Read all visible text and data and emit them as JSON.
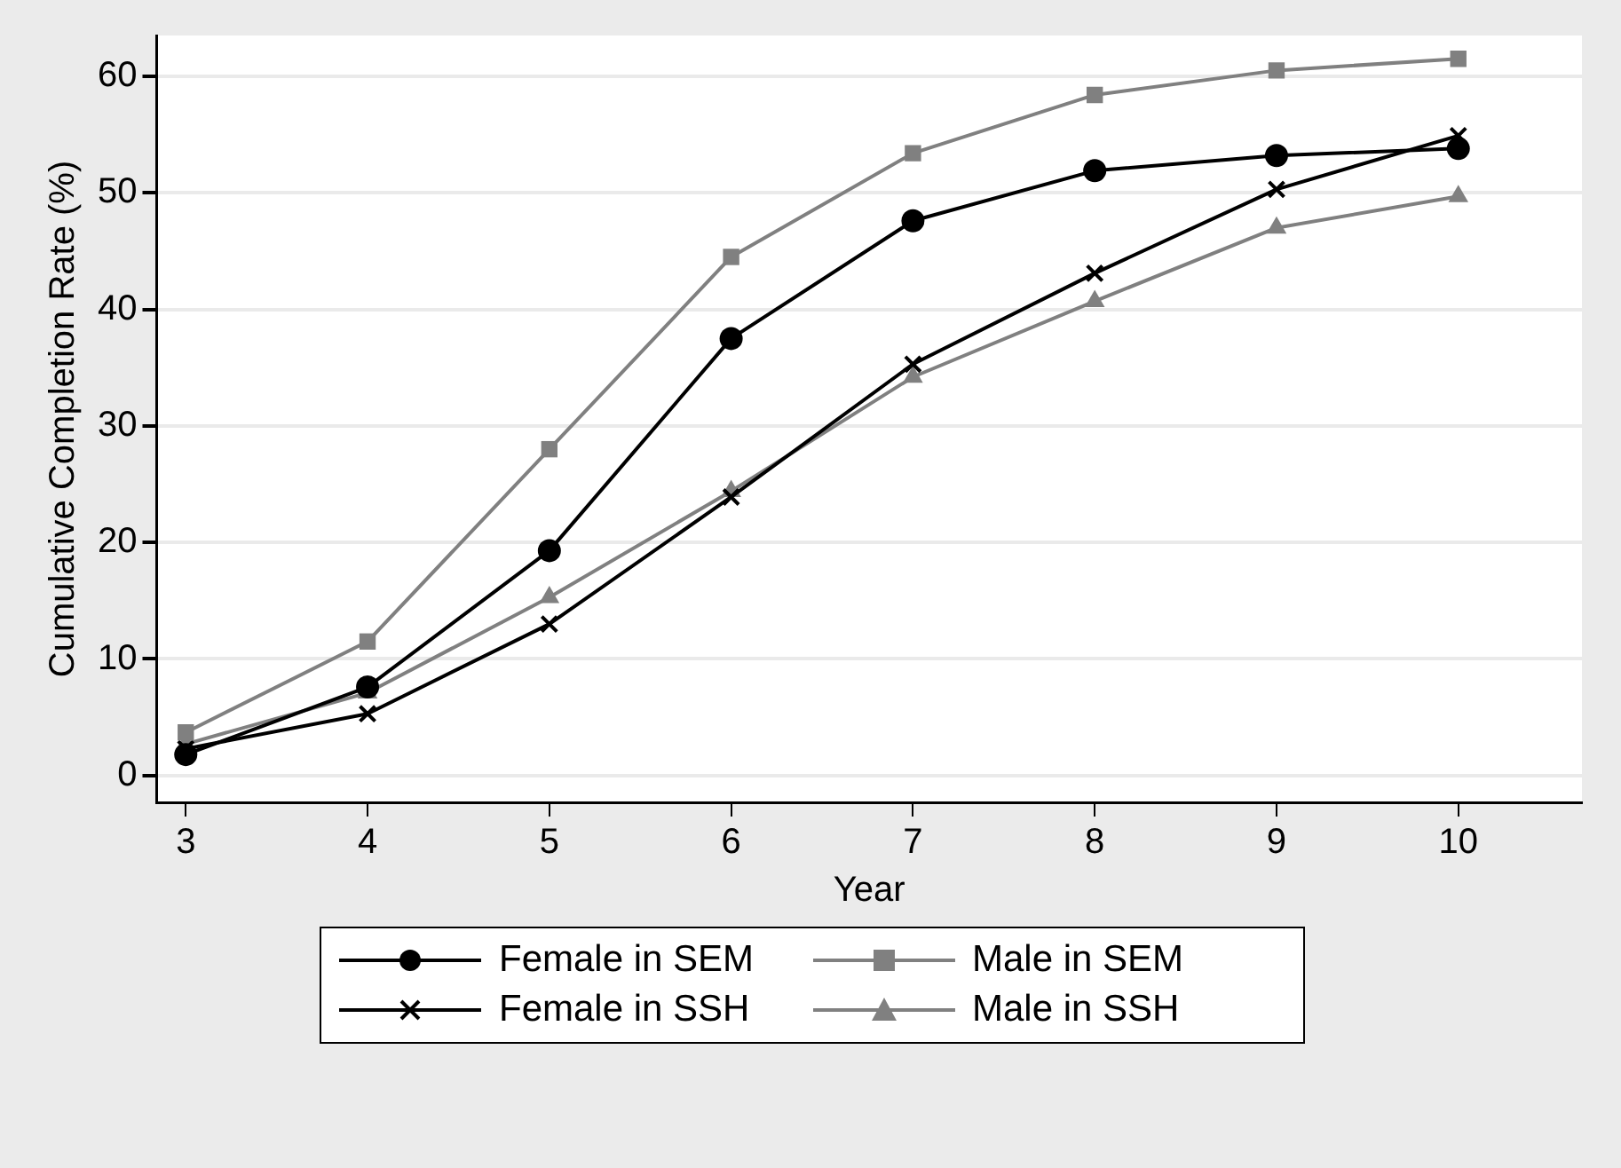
{
  "chart_data": {
    "type": "line",
    "xlabel": "Year",
    "ylabel": "Cumulative Completion Rate (%)",
    "x": [
      3,
      4,
      5,
      6,
      7,
      8,
      9,
      10
    ],
    "xlim": [
      2.84,
      10.68
    ],
    "xticks": [
      3,
      4,
      5,
      6,
      7,
      8,
      9,
      10
    ],
    "ylim": [
      -2.3,
      63.5
    ],
    "yticks": [
      0,
      10,
      20,
      30,
      40,
      50,
      60
    ],
    "grid": "y",
    "legend": "bottom",
    "line_style": "solid",
    "series": [
      {
        "name": "Female in SEM",
        "color": "#000000",
        "marker": "circle",
        "values": [
          1.8,
          7.6,
          19.3,
          37.5,
          47.6,
          51.9,
          53.2,
          53.8
        ]
      },
      {
        "name": "Male in SEM",
        "color": "#808080",
        "marker": "square",
        "values": [
          3.7,
          11.5,
          28.0,
          44.5,
          53.4,
          58.4,
          60.5,
          61.5
        ]
      },
      {
        "name": "Female in SSH",
        "color": "#000000",
        "marker": "cross",
        "values": [
          2.3,
          5.3,
          13.0,
          23.9,
          35.3,
          43.1,
          50.3,
          54.9
        ]
      },
      {
        "name": "Male in SSH",
        "color": "#808080",
        "marker": "triangle",
        "values": [
          2.7,
          7.1,
          15.3,
          24.4,
          34.2,
          40.7,
          47.0,
          49.7
        ]
      }
    ]
  }
}
